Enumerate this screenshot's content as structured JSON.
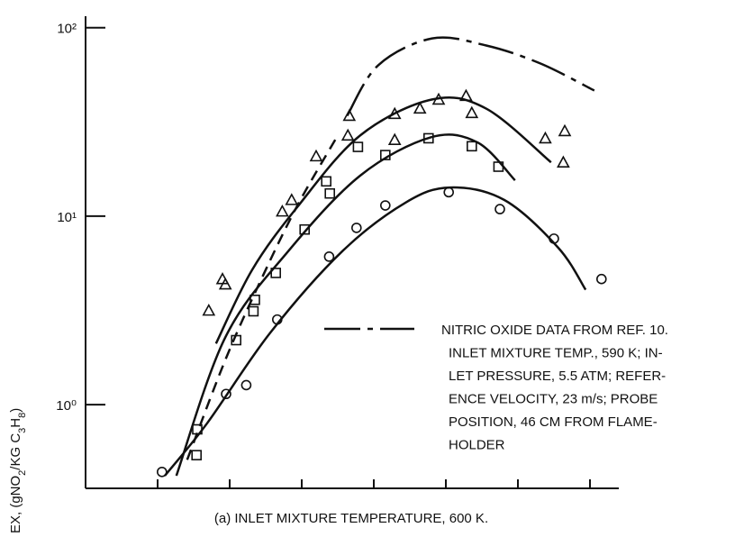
{
  "chart_data": {
    "type": "scatter",
    "title": "(a) INLET MIXTURE TEMPERATURE, 600 K.",
    "y_label": [
      "EX, (gNO",
      "2",
      "/KG C",
      "3",
      "H",
      "8",
      ")"
    ],
    "log_y": true,
    "xlim": [
      0,
      7.4
    ],
    "xticks": [
      0,
      1,
      2,
      3,
      4,
      5,
      6,
      7
    ],
    "ylim": [
      0.36,
      115
    ],
    "yticks": [
      {
        "value": 1,
        "label": "10⁰"
      },
      {
        "value": 10,
        "label": "10¹"
      },
      {
        "value": 100,
        "label": "10²"
      }
    ],
    "color": "#111111",
    "series": [
      {
        "marker": "circle",
        "x": [
          1.06,
          1.95,
          2.23,
          2.66,
          3.38,
          3.76,
          4.16,
          5.04,
          5.75,
          6.5,
          7.16
        ],
        "values": [
          0.44,
          1.14,
          1.27,
          2.83,
          6.1,
          8.67,
          11.4,
          13.4,
          10.9,
          7.6,
          4.64
        ]
      },
      {
        "marker": "square",
        "x": [
          1.54,
          1.55,
          2.09,
          2.33,
          2.35,
          2.64,
          3.04,
          3.34,
          3.39,
          3.78,
          4.16,
          4.76,
          5.36,
          5.73
        ],
        "values": [
          0.54,
          0.74,
          2.2,
          3.13,
          3.6,
          5.0,
          8.5,
          15.3,
          13.2,
          23.3,
          21.1,
          25.9,
          23.5,
          18.3
        ]
      },
      {
        "marker": "triangle",
        "x": [
          1.71,
          1.9,
          1.94,
          2.73,
          2.86,
          3.2,
          3.64,
          3.66,
          4.29,
          4.29,
          4.64,
          4.9,
          5.28,
          5.36,
          6.38,
          6.65,
          6.63
        ],
        "values": [
          3.16,
          4.64,
          4.35,
          10.6,
          12.2,
          20.8,
          26.8,
          34.1,
          34.9,
          25.4,
          37.3,
          41.6,
          43.5,
          35.3,
          25.9,
          28.3,
          19.3
        ]
      }
    ],
    "curves": [
      {
        "style": "solid",
        "x": [
          1.1,
          1.69,
          2.56,
          3.56,
          4.44,
          5.06,
          5.81,
          6.56,
          6.94
        ],
        "values": [
          0.42,
          0.8,
          2.4,
          6.5,
          11.8,
          14.2,
          12.2,
          6.8,
          4.07
        ]
      },
      {
        "style": "solid",
        "x": [
          1.26,
          1.94,
          2.81,
          3.81,
          4.79,
          5.44,
          5.96
        ],
        "values": [
          0.42,
          2.28,
          6.5,
          16.4,
          26.2,
          24.6,
          15.5
        ]
      },
      {
        "style": "solid",
        "x": [
          1.81,
          2.31,
          2.94,
          3.81,
          4.81,
          5.56,
          6.46
        ],
        "values": [
          2.11,
          5.18,
          11.2,
          26.8,
          41.6,
          37.2,
          19.3
        ]
      },
      {
        "style": "dashed",
        "x": [
          1.41,
          1.94,
          2.44,
          2.94,
          3.5
        ],
        "values": [
          0.51,
          1.73,
          4.64,
          11.4,
          26.8
        ]
      },
      {
        "style": "dashdot",
        "x": [
          3.63,
          4.06,
          4.81,
          5.56,
          6.31,
          7.06
        ],
        "values": [
          34.1,
          63.1,
          87.7,
          80.4,
          64.6,
          46.4
        ]
      }
    ],
    "legend": {
      "style": "dashdot",
      "lines": [
        "NITRIC OXIDE DATA FROM REF. 10.",
        "INLET MIXTURE TEMP., 590 K; IN-",
        "LET PRESSURE, 5.5 ATM; REFER-",
        "ENCE VELOCITY, 23 m/s; PROBE",
        "POSITION, 46 CM FROM FLAME-",
        "HOLDER"
      ]
    }
  }
}
